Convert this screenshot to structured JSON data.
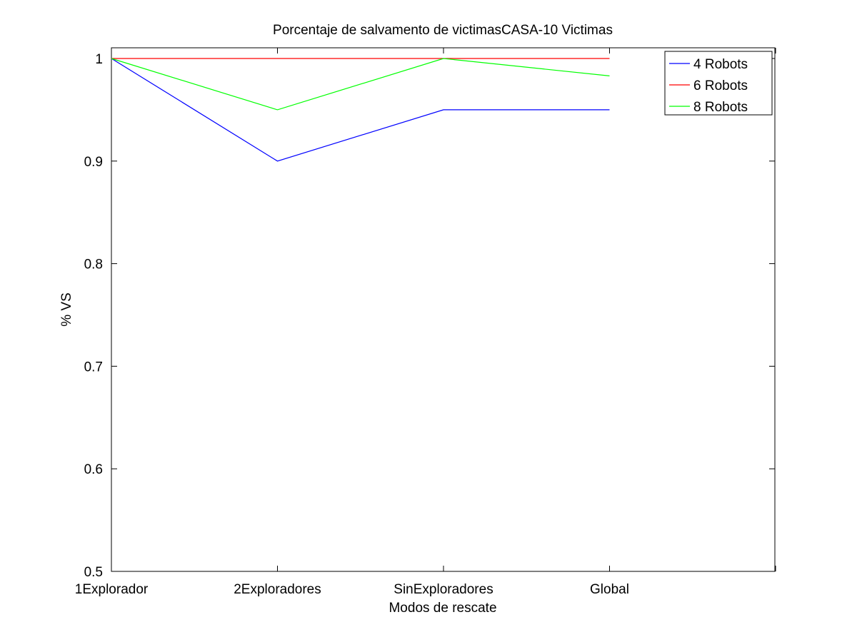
{
  "chart_data": {
    "type": "line",
    "title": "Porcentaje de salvamento de victimasCASA-10 Victimas",
    "xlabel": "Modos de rescate",
    "ylabel": "% VS",
    "categories": [
      "1Explorador",
      "2Exploradores",
      "SinExploradores",
      "Global"
    ],
    "x_extra_ticks": 1,
    "ylim": [
      0.5,
      1.0
    ],
    "yticks": [
      "0.5",
      "0.6",
      "0.7",
      "0.8",
      "0.9",
      "1"
    ],
    "grid": false,
    "legend_position": "top-right",
    "series": [
      {
        "name": "4 Robots",
        "color": "#0000ff",
        "values": [
          1.0,
          0.9,
          0.95,
          0.95
        ]
      },
      {
        "name": "6 Robots",
        "color": "#ff0000",
        "values": [
          1.0,
          1.0,
          1.0,
          1.0
        ]
      },
      {
        "name": "8 Robots",
        "color": "#00ff00",
        "values": [
          1.0,
          0.95,
          1.0,
          0.983
        ]
      }
    ]
  }
}
